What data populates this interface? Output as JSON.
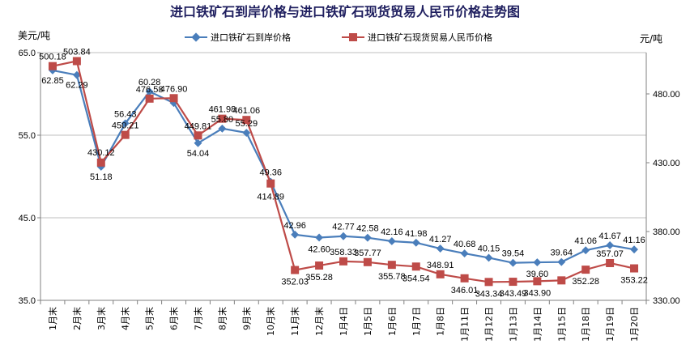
{
  "chart_data": {
    "type": "line",
    "title": "进口铁矿石到岸价格与进口铁矿石现货贸易人民币价格走势图",
    "categories": [
      "1月末",
      "2月末",
      "3月末",
      "4月末",
      "5月末",
      "6月末",
      "7月末",
      "8月末",
      "9月末",
      "10月末",
      "11月末",
      "12月末",
      "1月4日",
      "1月5日",
      "1月6日",
      "1月7日",
      "1月8日",
      "1月11日",
      "1月12日",
      "1月13日",
      "1月14日",
      "1月15日",
      "1月18日",
      "1月19日",
      "1月20日"
    ],
    "left_axis": {
      "unit": "美元/吨",
      "ylim": [
        35.0,
        65.0
      ],
      "ticks": [
        "35.0",
        "45.0",
        "55.0",
        "65.0"
      ],
      "tick_values": [
        35,
        45,
        55,
        65
      ]
    },
    "right_axis": {
      "unit": "元/吨",
      "ylim": [
        330.0,
        510.0
      ],
      "ticks": [
        "330.00",
        "380.00",
        "430.00",
        "480.00"
      ],
      "tick_values": [
        330,
        380,
        430,
        480
      ]
    },
    "series": [
      {
        "name": "进口铁矿石到岸价格",
        "axis": "left",
        "color": "#4a7ebb",
        "marker": "diamond",
        "values": [
          62.85,
          62.29,
          51.18,
          56.43,
          60.28,
          58.9,
          54.04,
          55.8,
          55.29,
          49.36,
          42.96,
          42.6,
          42.77,
          42.58,
          42.16,
          41.98,
          41.27,
          40.68,
          40.15,
          39.54,
          39.6,
          39.64,
          41.06,
          41.67,
          41.16
        ],
        "labels": [
          "62.85",
          "62.29",
          "51.18",
          "56.43",
          "60.28",
          "",
          "54.04",
          "55.80",
          "55.29",
          "49.36",
          "42.96",
          "42.60",
          "42.77",
          "42.58",
          "42.16",
          "41.98",
          "41.27",
          "40.68",
          "40.15",
          "39.54",
          "39.60",
          "39.64",
          "41.06",
          "41.67",
          "41.16"
        ]
      },
      {
        "name": "进口铁矿石现货贸易人民币价格",
        "axis": "right",
        "color": "#be4b48",
        "marker": "square",
        "values": [
          500.18,
          503.84,
          430.12,
          450.21,
          476.58,
          476.9,
          449.81,
          461.98,
          461.06,
          414.89,
          352.03,
          355.28,
          358.33,
          357.77,
          355.78,
          354.54,
          348.91,
          346.01,
          343.34,
          343.49,
          343.9,
          344.5,
          352.28,
          357.07,
          353.22
        ],
        "labels": [
          "500.18",
          "503.84",
          "430.12",
          "450.21",
          "476.58",
          "476.90",
          "449.81",
          "461.98",
          "461.06",
          "414.89",
          "352.03",
          "355.28",
          "358.33",
          "357.77",
          "355.78",
          "354.54",
          "348.91",
          "346.01",
          "343.34",
          "343.49",
          "343.90",
          "",
          "352.28",
          "357.07",
          "353.22"
        ]
      }
    ],
    "legend": "top",
    "grid": true
  }
}
